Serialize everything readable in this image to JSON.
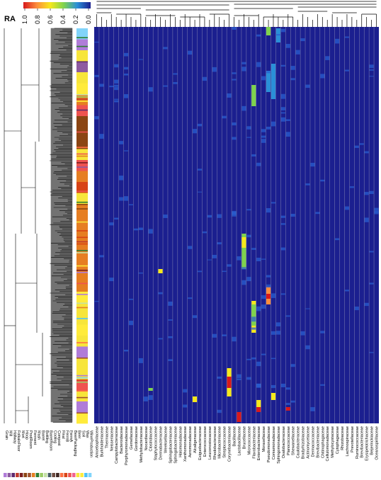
{
  "chart_data": {
    "type": "heatmap",
    "title": "",
    "value_label": "RA",
    "scale": {
      "ticks": [
        "1.0",
        "0.8",
        "0.6",
        "0.4",
        "0.2",
        "0.0"
      ],
      "min": 0,
      "max": 1,
      "colors": [
        "#d7191c",
        "#fd8d3c",
        "#f6e81c",
        "#7fd34e",
        "#2a8fd8",
        "#1b1f8f"
      ]
    },
    "columns": [
      "Amoebophilaceae",
      "Burkholderiaceae",
      "Thermaceae",
      "Neisseriaceae",
      "Campylobacteraceae",
      "Bacteroidaceae",
      "Porphyromonadaceae",
      "Gemellaceae",
      "Gordoniaceae",
      "Methylobacteriaceae",
      "Nocardiaceae",
      "Clostridiaceae",
      "Staphylococcaceae",
      "Dermabacteraceae",
      "Weeksellaceae",
      "Sphingobacteriaceae",
      "Sphingobacteriaceae",
      "Halomonadaceae",
      "Xanthomonadaceae",
      "Aeromonadaceae",
      "Alcaligenaceae",
      "Exiguobacteraceae",
      "Enterococcaceae",
      "Leuconostocaceae",
      "Rhodobacteraceae",
      "Microbacteriaceae",
      "Streptococcaceae",
      "Corynebacteriaceae",
      "Bacillaceae",
      "Lactobacillaceae",
      "Brucellaceae",
      "Micrococcaceae",
      "Flavobacteriaceae",
      "Enterobacteriaceae",
      "Moraxellaceae",
      "Pseudomonadaceae",
      "Comamonadaceae",
      "Sphingomonadaceae",
      "Oxalobacteraceae",
      "Planococcaceae",
      "Shewanellaceae",
      "Caulobacteraceae",
      "Bradyrhizobiaceae",
      "Actinomycetaceae",
      "Dermacoccaceae",
      "Brevibacteriaceae",
      "Chitinophagaceae",
      "Cellulomonadaceae",
      "Methylocystaceae",
      "Cytophagaceae",
      "Rhizobiaceae",
      "Lachnospiraceae",
      "Prevotellaceae",
      "Ruminococcaceae",
      "Brevibacteriaceae",
      "Erysipelotrichaceae",
      "Beijerinckiaceae",
      "Oceanospirillaceae"
    ],
    "sample_groups": [
      {
        "name": "Grain",
        "color": "#b07cd8"
      },
      {
        "name": "Mill",
        "color": "#8e5aa0"
      },
      {
        "name": "Hallway",
        "color": "#5e2a6e"
      },
      {
        "name": "FolkaloFloor",
        "color": "#c0392b"
      },
      {
        "name": "Mort",
        "color": "#7b1e1e"
      },
      {
        "name": "Hoop",
        "color": "#8b4513"
      },
      {
        "name": "ProdRoom",
        "color": "#a0522d"
      },
      {
        "name": "Ferment",
        "color": "#e67e22"
      },
      {
        "name": "Mash",
        "color": "#2e7d32"
      },
      {
        "name": "Barrel",
        "color": "#9ccc65"
      },
      {
        "name": "Bottling",
        "color": "#c5e1a5"
      },
      {
        "name": "BarrelRoom",
        "color": "#455a64"
      },
      {
        "name": "Cooling",
        "color": "#6d4c41"
      },
      {
        "name": "Compost",
        "color": "#3e2723"
      },
      {
        "name": "Final",
        "color": "#ff7043"
      },
      {
        "name": "FermB",
        "color": "#d84315"
      },
      {
        "name": "FermA",
        "color": "#ef5350"
      },
      {
        "name": "BeerPackaging",
        "color": "#f06292"
      },
      {
        "name": "Beer",
        "color": "#f7e53b"
      },
      {
        "name": "Soil",
        "color": "#ffeb3b"
      },
      {
        "name": "Wax",
        "color": "#4fc3f7"
      },
      {
        "name": "WineProduction",
        "color": "#81d4fa"
      }
    ],
    "sample_bar_sequence": [
      "WineProduction",
      "Grain",
      "Beer",
      "Mill",
      "Beer",
      "Soil",
      "Ferment",
      "FermA",
      "Hoop",
      "Hoop",
      "Hoop",
      "Beer",
      "FermA",
      "Ferment",
      "FermB",
      "Beer",
      "Ferment",
      "Ferment",
      "Ferment",
      "Ferment",
      "Ferment",
      "Ferment",
      "Ferment",
      "Ferment",
      "Soil",
      "Beer",
      "Beer",
      "Soil",
      "Beer",
      "Grain",
      "Beer",
      "Beer",
      "FermA",
      "Beer",
      "Grain",
      "Soil"
    ]
  }
}
